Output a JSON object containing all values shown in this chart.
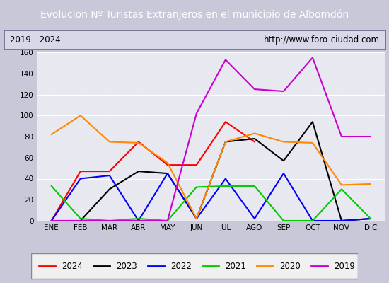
{
  "title": "Evolucion Nº Turistas Extranjeros en el municipio de Albomdón",
  "subtitle_left": "2019 - 2024",
  "subtitle_right": "http://www.foro-ciudad.com",
  "months": [
    "ENE",
    "FEB",
    "MAR",
    "ABR",
    "MAY",
    "JUN",
    "JUL",
    "AGO",
    "SEP",
    "OCT",
    "NOV",
    "DIC"
  ],
  "series": {
    "2024": {
      "color": "#ff0000",
      "values": [
        0,
        47,
        47,
        75,
        53,
        53,
        94,
        75,
        null,
        null,
        null,
        null
      ]
    },
    "2023": {
      "color": "#000000",
      "values": [
        0,
        0,
        30,
        47,
        45,
        2,
        75,
        78,
        57,
        94,
        0,
        2
      ]
    },
    "2022": {
      "color": "#0000ff",
      "values": [
        0,
        40,
        43,
        0,
        45,
        2,
        40,
        2,
        45,
        0,
        0,
        2
      ]
    },
    "2021": {
      "color": "#00cc00",
      "values": [
        33,
        2,
        0,
        2,
        0,
        32,
        33,
        33,
        0,
        0,
        30,
        2
      ]
    },
    "2020": {
      "color": "#ff8800",
      "values": [
        82,
        100,
        75,
        74,
        55,
        2,
        75,
        83,
        75,
        74,
        34,
        35
      ]
    },
    "2019": {
      "color": "#cc00cc",
      "values": [
        0,
        0,
        0,
        0,
        0,
        102,
        153,
        125,
        123,
        155,
        80,
        80
      ]
    }
  },
  "ylim": [
    0,
    160
  ],
  "yticks": [
    0,
    20,
    40,
    60,
    80,
    100,
    120,
    140,
    160
  ],
  "fig_bg": "#c8c8d8",
  "title_bg": "#4f7fc8",
  "title_color": "#ffffff",
  "plot_bg": "#e8e8f0",
  "subtitle_bg": "#d8d8e8",
  "legend_order": [
    "2024",
    "2023",
    "2022",
    "2021",
    "2020",
    "2019"
  ]
}
